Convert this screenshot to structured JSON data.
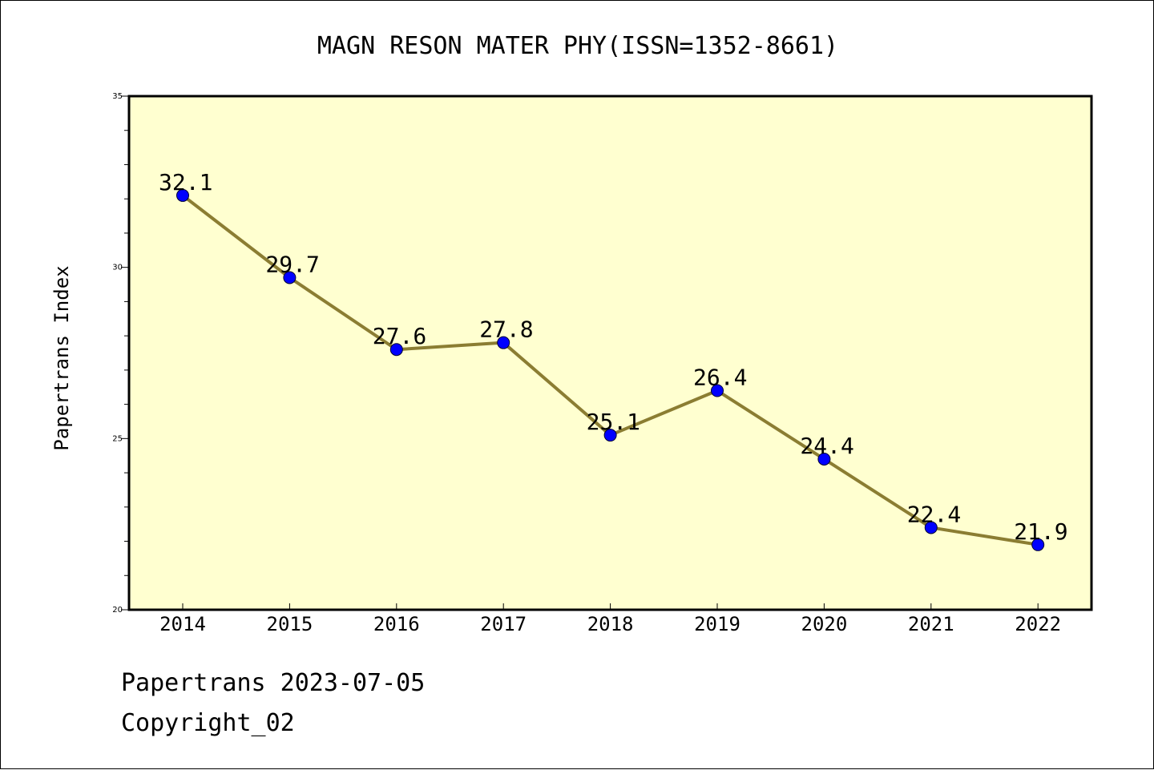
{
  "chart_data": {
    "type": "line",
    "title": "MAGN RESON MATER PHY(ISSN=1352-8661)",
    "xlabel": "",
    "ylabel": "Papertrans Index",
    "categories": [
      "2014",
      "2015",
      "2016",
      "2017",
      "2018",
      "2019",
      "2020",
      "2021",
      "2022"
    ],
    "series": [
      {
        "values": [
          32.1,
          29.7,
          27.6,
          27.8,
          25.1,
          26.4,
          24.4,
          22.4,
          21.9
        ]
      }
    ],
    "data_labels": [
      "32.1",
      "29.7",
      "27.6",
      "27.8",
      "25.1",
      "26.4",
      "24.4",
      "22.4",
      "21.9"
    ],
    "ylim": [
      20,
      35
    ],
    "y_major_ticks": [
      "20",
      "25",
      "30",
      "35"
    ],
    "grid": false,
    "colors": {
      "plot_background": "#ffffd0",
      "line": "#8b7d32",
      "marker": "#0000ff"
    }
  },
  "footer": {
    "line1": "Papertrans 2023-07-05",
    "line2": "Copyright_02"
  }
}
